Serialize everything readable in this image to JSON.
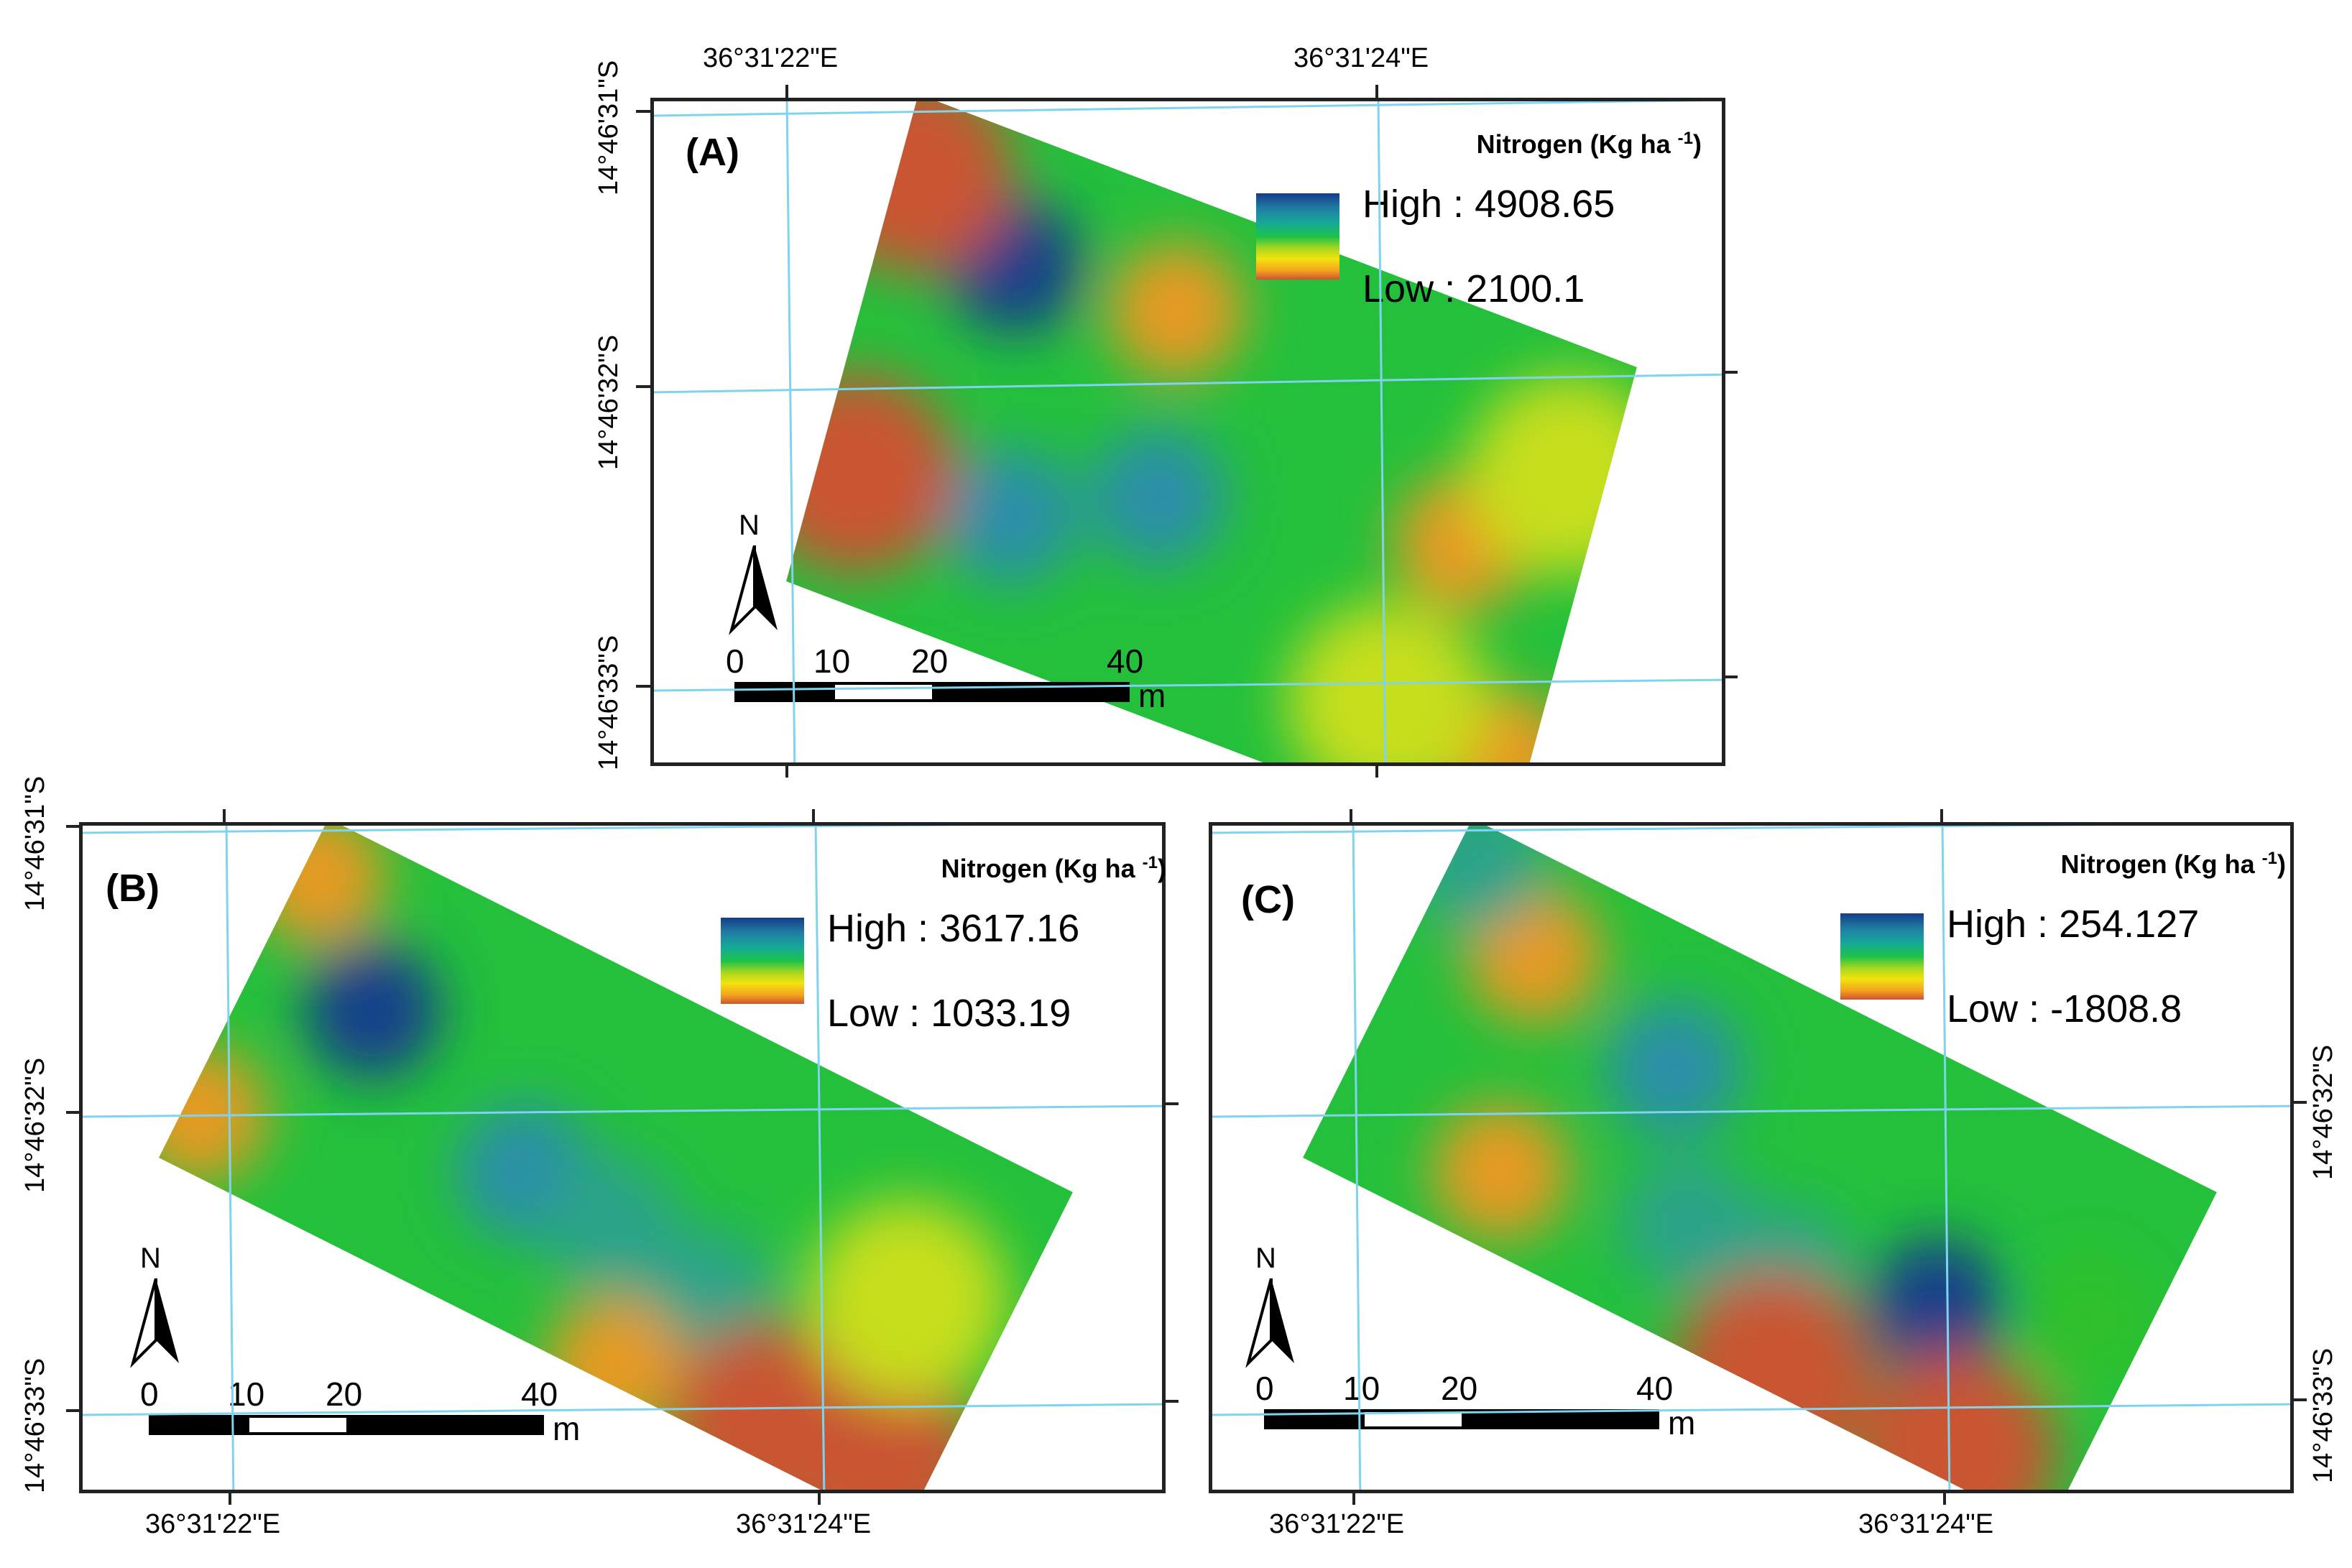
{
  "figure": {
    "legend_title": "Nitrogen (Kg ha",
    "legend_unit_exp": "-1",
    "legend_unit_close": ")",
    "north_label": "N",
    "scale_labels": [
      "0",
      "10",
      "20",
      "40"
    ],
    "scale_unit": "m",
    "longitudes": [
      "36°31'22\"E",
      "36°31'24\"E"
    ],
    "latitudes": [
      "14°46'31\"S",
      "14°46'32\"S",
      "14°46'33\"S"
    ]
  },
  "panels": [
    {
      "id": "A",
      "label": "(A)",
      "high_label": "High : 4908.65",
      "low_label": "Low : 2100.1",
      "hotspots": [
        {
          "u": 0.18,
          "v": 0.25,
          "value": "very-high"
        },
        {
          "u": 0.4,
          "v": 0.22,
          "value": "low"
        },
        {
          "u": 0.26,
          "v": 0.72,
          "value": "high"
        },
        {
          "u": 0.44,
          "v": 0.58,
          "value": "high"
        },
        {
          "u": 0.84,
          "v": 0.45,
          "value": "low"
        },
        {
          "u": 0.97,
          "v": 0.82,
          "value": "low"
        },
        {
          "u": 0.02,
          "v": 0.15,
          "value": "very-low"
        },
        {
          "u": 0.05,
          "v": 0.75,
          "value": "very-low"
        },
        {
          "u": 0.8,
          "v": 0.8,
          "value": "mid-low"
        },
        {
          "u": 0.95,
          "v": 0.25,
          "value": "mid-low"
        }
      ]
    },
    {
      "id": "B",
      "label": "(B)",
      "high_label": "High : 3617.16",
      "low_label": "Low : 1033.19",
      "hotspots": [
        {
          "u": 0.15,
          "v": 0.4,
          "value": "very-high"
        },
        {
          "u": 0.4,
          "v": 0.6,
          "value": "high"
        },
        {
          "u": 0.52,
          "v": 0.62,
          "value": "mid-high"
        },
        {
          "u": 0.66,
          "v": 0.68,
          "value": "mid-high"
        },
        {
          "u": 0.6,
          "v": 0.95,
          "value": "low"
        },
        {
          "u": 0.93,
          "v": 0.85,
          "value": "very-low"
        },
        {
          "u": 0.8,
          "v": 0.9,
          "value": "very-low"
        },
        {
          "u": 0.02,
          "v": 0.15,
          "value": "low"
        },
        {
          "u": 0.02,
          "v": 0.85,
          "value": "low"
        },
        {
          "u": 0.88,
          "v": 0.45,
          "value": "mid-low"
        }
      ]
    },
    {
      "id": "C",
      "label": "(C)",
      "high_label": "High : 254.127",
      "low_label": "Low : -1808.8",
      "hotspots": [
        {
          "u": 0.14,
          "v": 0.25,
          "value": "low"
        },
        {
          "u": 0.22,
          "v": 0.8,
          "value": "low"
        },
        {
          "u": 0.35,
          "v": 0.35,
          "value": "high"
        },
        {
          "u": 0.45,
          "v": 0.7,
          "value": "mid-high"
        },
        {
          "u": 0.58,
          "v": 0.7,
          "value": "mid-high"
        },
        {
          "u": 0.62,
          "v": 0.95,
          "value": "very-low"
        },
        {
          "u": 0.76,
          "v": 0.6,
          "value": "very-high"
        },
        {
          "u": 0.86,
          "v": 0.92,
          "value": "very-low"
        },
        {
          "u": 0.93,
          "v": 0.45,
          "value": "mid"
        },
        {
          "u": 0.03,
          "v": 0.1,
          "value": "mid-high"
        }
      ]
    }
  ],
  "colors": {
    "very-high": "#16418a",
    "high": "#2a8fa8",
    "mid-high": "#2aa389",
    "mid": "#2ec02a",
    "mid-low": "#c6de1c",
    "low": "#e69a22",
    "very-low": "#c95532",
    "base": "#24c03c",
    "grid": "#7fd3ef",
    "frame": "#222222"
  }
}
